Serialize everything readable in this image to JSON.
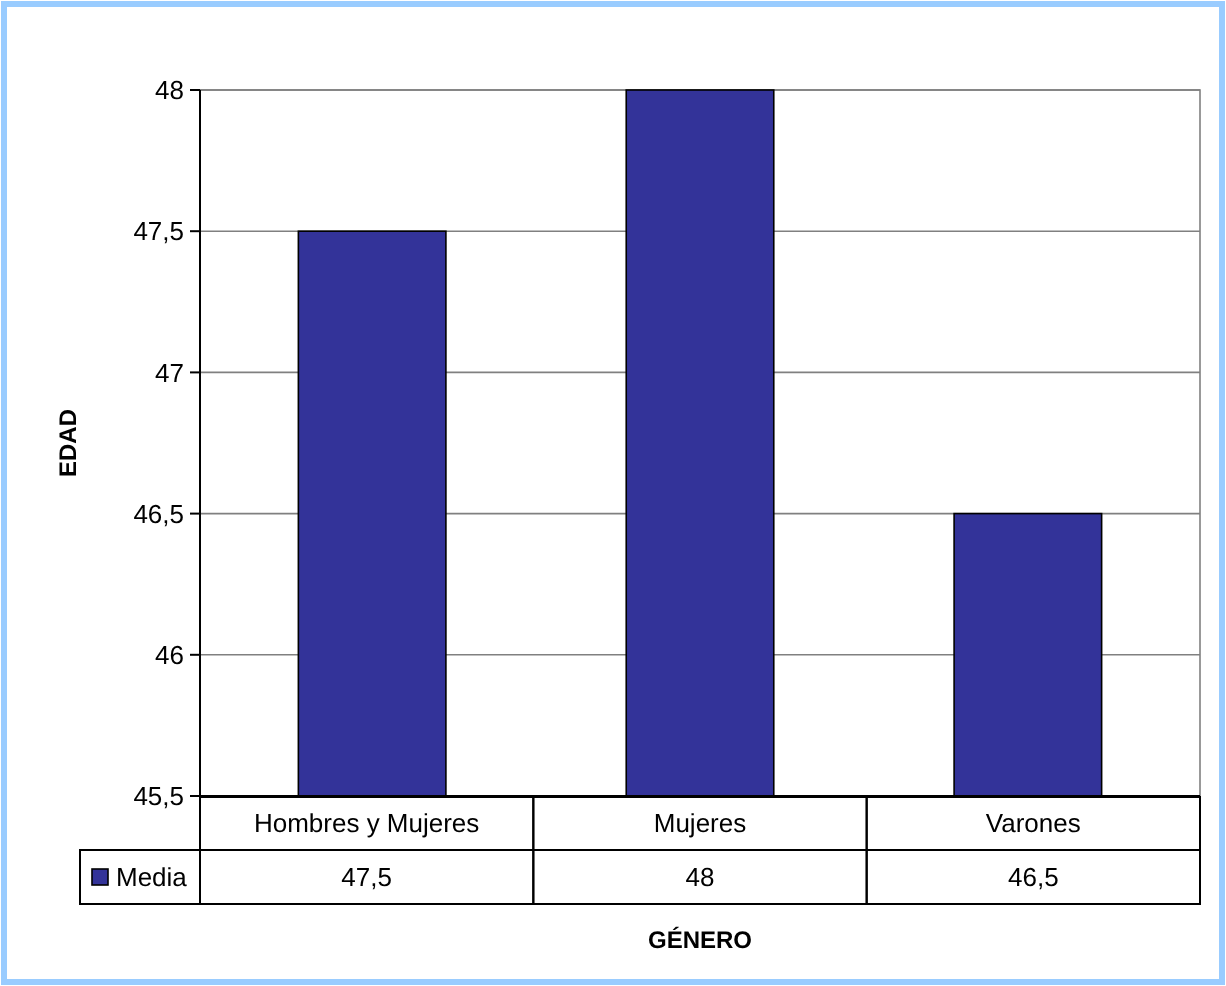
{
  "chart_data": {
    "type": "bar",
    "xlabel": "GÉNERO",
    "ylabel": "EDAD",
    "categories": [
      "Hombres y Mujeres",
      "Mujeres",
      "Varones"
    ],
    "series": [
      {
        "name": "Media",
        "color": "#333399",
        "values": [
          47.5,
          48,
          46.5
        ],
        "value_labels": [
          "47,5",
          "48",
          "46,5"
        ]
      }
    ],
    "ylim": [
      45.5,
      48
    ],
    "yticks": [
      {
        "value": 45.5,
        "label": "45,5"
      },
      {
        "value": 46,
        "label": "46"
      },
      {
        "value": 46.5,
        "label": "46,5"
      },
      {
        "value": 47,
        "label": "47"
      },
      {
        "value": 47.5,
        "label": "47,5"
      },
      {
        "value": 48,
        "label": "48"
      }
    ],
    "grid": true,
    "legend": "bottom"
  }
}
